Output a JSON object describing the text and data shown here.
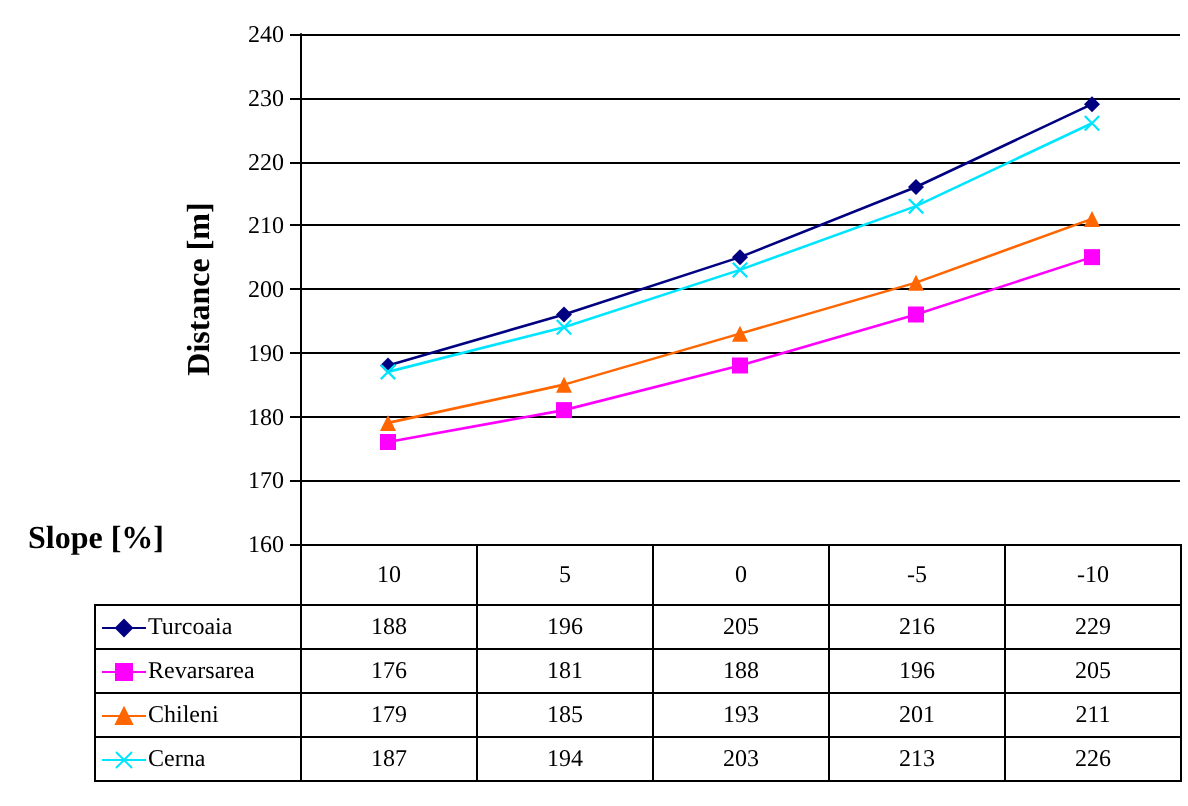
{
  "chart_data": {
    "type": "line",
    "ylabel": "Distance [m]",
    "xlabel": "Slope [%]",
    "categories": [
      "10",
      "5",
      "0",
      "-5",
      "-10"
    ],
    "series": [
      {
        "name": "Turcoaia",
        "color": "#000080",
        "marker": "diamond",
        "values": [
          188,
          196,
          205,
          216,
          229
        ]
      },
      {
        "name": "Revarsarea",
        "color": "#ff00ff",
        "marker": "square",
        "values": [
          176,
          181,
          188,
          196,
          205
        ]
      },
      {
        "name": "Chileni",
        "color": "#ff6600",
        "marker": "triangle",
        "values": [
          179,
          185,
          193,
          201,
          211
        ]
      },
      {
        "name": "Cerna",
        "color": "#00e5ff",
        "marker": "cross",
        "values": [
          187,
          194,
          203,
          213,
          226
        ]
      }
    ],
    "ylim": [
      160,
      240
    ],
    "yticks": [
      160,
      170,
      180,
      190,
      200,
      210,
      220,
      230,
      240
    ],
    "grid": "y",
    "legend": "bottom",
    "data_labels": true
  }
}
